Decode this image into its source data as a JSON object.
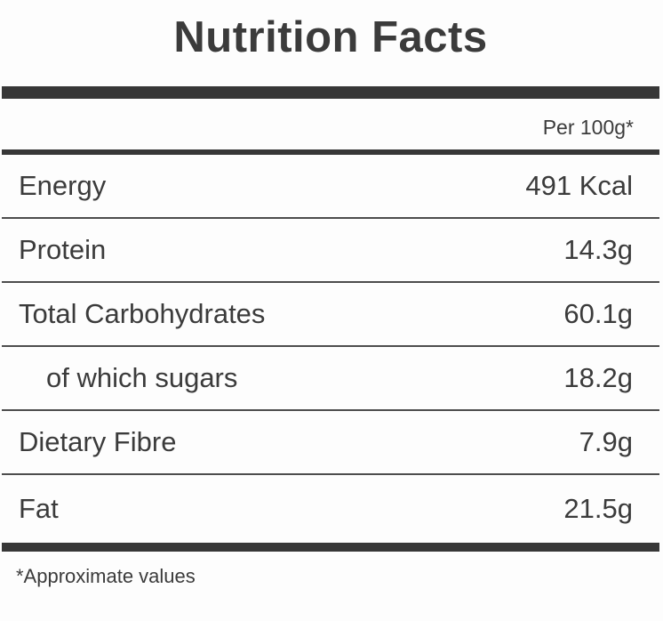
{
  "label": {
    "title": "Nutrition Facts",
    "column_header": "Per 100g*",
    "rows": [
      {
        "name": "Energy",
        "value": "491 Kcal",
        "indent": false
      },
      {
        "name": "Protein",
        "value": "14.3g",
        "indent": false
      },
      {
        "name": "Total Carbohydrates",
        "value": "60.1g",
        "indent": false
      },
      {
        "name": "of which sugars",
        "value": "18.2g",
        "indent": true
      },
      {
        "name": "Dietary Fibre",
        "value": "7.9g",
        "indent": false
      },
      {
        "name": "Fat",
        "value": "21.5g",
        "indent": false
      }
    ],
    "footnote": "*Approximate values",
    "colors": {
      "text": "#3b3b3b",
      "bar": "#373737",
      "divider": "#4d4d4d",
      "background": "#fdfdfd"
    }
  }
}
